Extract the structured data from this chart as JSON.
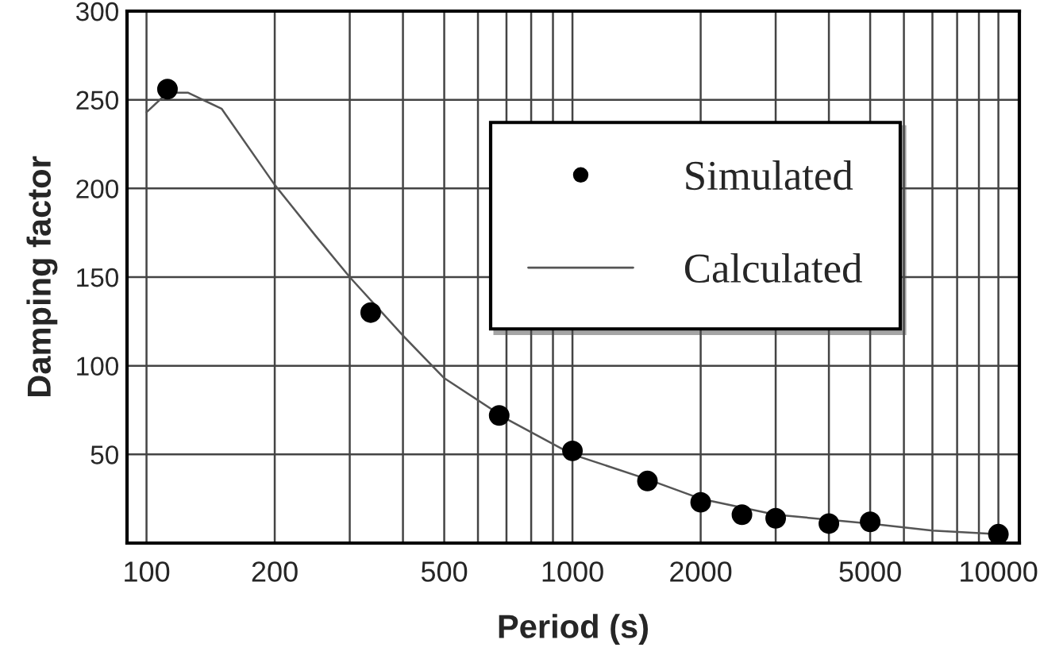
{
  "chart_data": {
    "type": "scatter",
    "xlabel": "Period (s)",
    "ylabel": "Damping factor",
    "log": "x",
    "xlim": [
      90,
      11200
    ],
    "ylim": [
      0,
      300
    ],
    "xticks": [
      100,
      200,
      {
        "value": 300,
        "label": null
      },
      {
        "value": 400,
        "label": null
      },
      500,
      {
        "value": 600,
        "label": null
      },
      {
        "value": 700,
        "label": null
      },
      {
        "value": 800,
        "label": null
      },
      {
        "value": 900,
        "label": null
      },
      1000,
      2000,
      {
        "value": 3000,
        "label": null
      },
      {
        "value": 4000,
        "label": null
      },
      5000,
      {
        "value": 6000,
        "label": null
      },
      {
        "value": 7000,
        "label": null
      },
      {
        "value": 8000,
        "label": null
      },
      {
        "value": 9000,
        "label": null
      },
      10000
    ],
    "yticks": [
      50,
      100,
      150,
      200,
      250,
      300
    ],
    "grid": true,
    "legend": "top right",
    "series": [
      {
        "name": "Simulated",
        "color": "#000000",
        "marker": "circle",
        "x": [
          112,
          336,
          673,
          1000,
          1500,
          2000,
          2500,
          3000,
          4000,
          5000,
          10000
        ],
        "values": [
          256,
          130,
          72,
          52,
          35,
          23,
          16,
          14,
          11,
          12,
          5
        ]
      },
      {
        "name": "Calculated",
        "type": "line",
        "color": "#555555",
        "line_style": "solid",
        "x": [
          100,
          112,
          125,
          150,
          200,
          250,
          300,
          400,
          500,
          700,
          1000,
          1500,
          2000,
          3000,
          5000,
          7000,
          10000
        ],
        "values": [
          243,
          254,
          254,
          245,
          202,
          173,
          150,
          117,
          93,
          70,
          50,
          36,
          25,
          16,
          11,
          7,
          5
        ]
      }
    ]
  }
}
